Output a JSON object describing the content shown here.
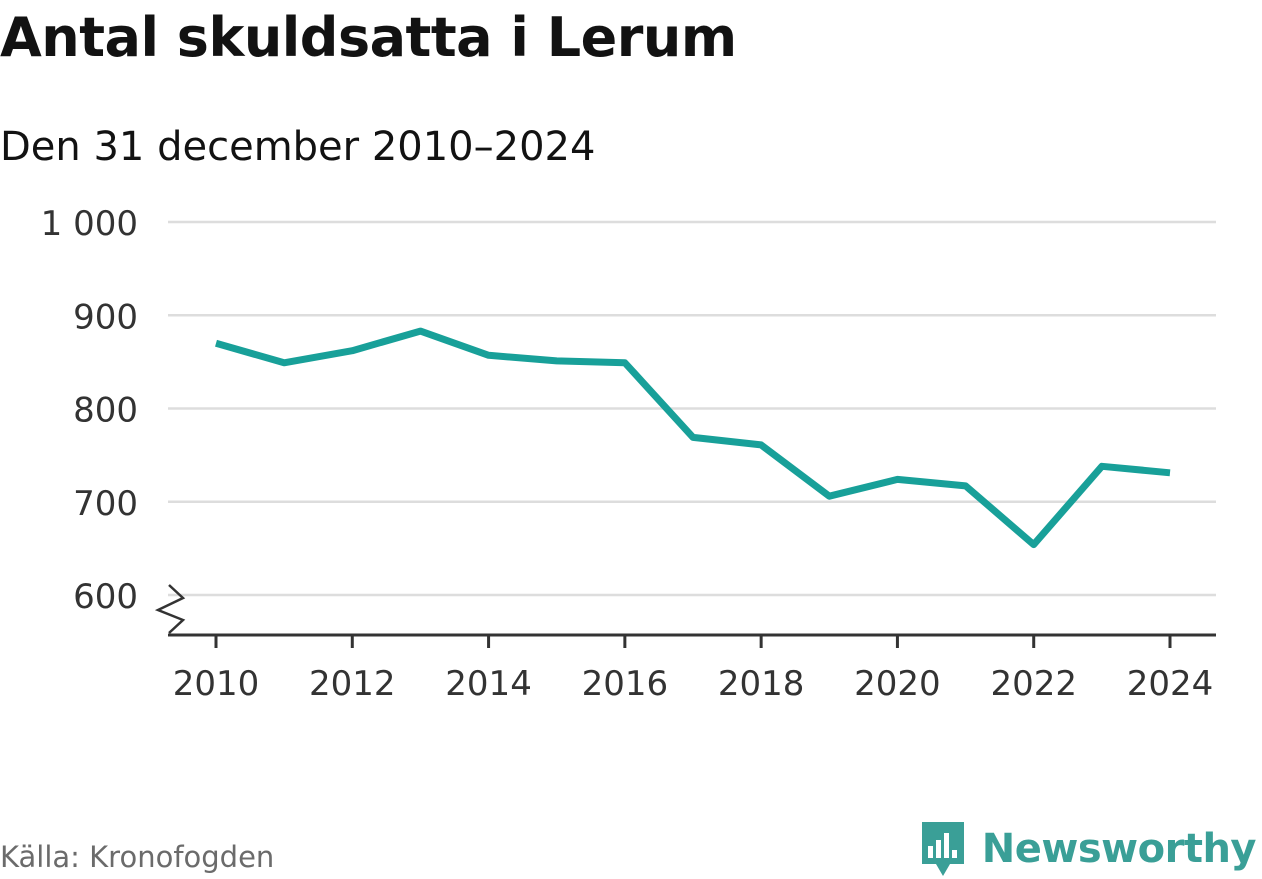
{
  "title": "Antal skuldsatta i Lerum",
  "subtitle": "Den 31 december 2010–2024",
  "source": "Källa: Kronofogden",
  "brand": {
    "name": "Newsworthy",
    "icon": "newsworthy-logo-icon",
    "color": "#3a9f97"
  },
  "colors": {
    "line": "#18a099",
    "grid": "#dddddd",
    "axis": "#333333",
    "text": "#121212",
    "muted": "#6b6b6b"
  },
  "chart_data": {
    "type": "line",
    "title": "Antal skuldsatta i Lerum",
    "subtitle": "Den 31 december 2010–2024",
    "xlabel": "",
    "ylabel": "",
    "x": [
      2010,
      2011,
      2012,
      2013,
      2014,
      2015,
      2016,
      2017,
      2018,
      2019,
      2020,
      2021,
      2022,
      2023,
      2024
    ],
    "series": [
      {
        "name": "Antal skuldsatta",
        "values": [
          870,
          849,
          862,
          883,
          857,
          851,
          849,
          769,
          761,
          706,
          724,
          717,
          654,
          738,
          731
        ]
      }
    ],
    "ylim": [
      600,
      1000
    ],
    "yticks": [
      600,
      700,
      800,
      900,
      1000
    ],
    "ytick_labels": [
      "600",
      "700",
      "800",
      "900",
      "1 000"
    ],
    "xticks": [
      2010,
      2012,
      2014,
      2016,
      2018,
      2020,
      2022,
      2024
    ],
    "xtick_labels": [
      "2010",
      "2012",
      "2014",
      "2016",
      "2018",
      "2020",
      "2022",
      "2024"
    ],
    "y_axis_break": true,
    "grid": true
  }
}
